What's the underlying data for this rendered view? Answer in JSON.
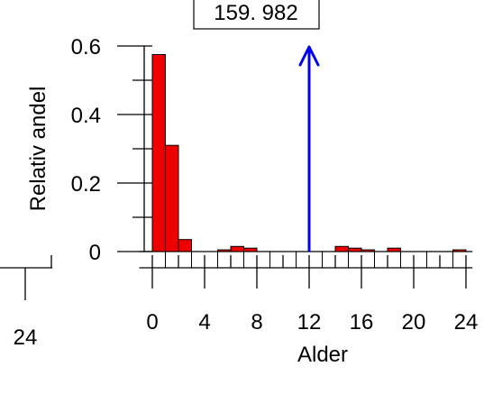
{
  "chart_data": {
    "type": "bar",
    "ylabel": "Relativ andel",
    "xlabel": "Alder",
    "annotation_label": "159. 982",
    "annotation_x": 12,
    "xlim": [
      -1,
      24.5
    ],
    "ylim": [
      0,
      0.6
    ],
    "x_ticks": [
      0,
      4,
      8,
      12,
      16,
      20,
      24
    ],
    "x_minor_ticks": [
      2,
      6,
      10,
      14,
      18,
      22
    ],
    "y_ticks": [
      {
        "value": 0,
        "label": "0"
      },
      {
        "value": 0.2,
        "label": "0.2"
      },
      {
        "value": 0.4,
        "label": "0.4"
      },
      {
        "value": 0.6,
        "label": "0.6"
      }
    ],
    "y_minor_ticks": [
      0.1,
      0.3,
      0.5
    ],
    "bin_width": 1,
    "bins": [
      {
        "start": 0,
        "value": 0.575
      },
      {
        "start": 1,
        "value": 0.31
      },
      {
        "start": 2,
        "value": 0.035
      },
      {
        "start": 5,
        "value": 0.005
      },
      {
        "start": 6,
        "value": 0.015
      },
      {
        "start": 7,
        "value": 0.01
      },
      {
        "start": 14,
        "value": 0.015
      },
      {
        "start": 15,
        "value": 0.01
      },
      {
        "start": 16,
        "value": 0.005
      },
      {
        "start": 18,
        "value": 0.01
      },
      {
        "start": 23,
        "value": 0.005
      }
    ],
    "bar_color": "#ee0000",
    "arrow_color": "#0000ee",
    "left_panel_label": "24"
  }
}
